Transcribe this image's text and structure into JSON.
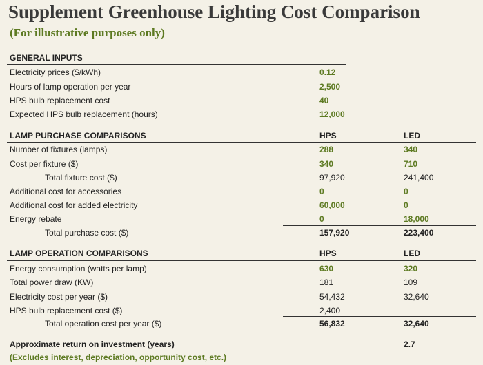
{
  "header": {
    "title": "Supplement Greenhouse Lighting Cost Comparison",
    "subtitle": "(For illustrative purposes only)"
  },
  "sections": [
    {
      "title": "GENERAL INPUTS",
      "rows": [
        {
          "label": "Electricity prices ($/kWh)",
          "values": [
            "0.12"
          ]
        },
        {
          "label": "Hours of lamp operation per year",
          "values": [
            "2,500"
          ]
        },
        {
          "label": "HPS bulb replacement cost",
          "values": [
            "40"
          ]
        },
        {
          "label": "Expected HPS bulb replacement (hours)",
          "values": [
            "12,000"
          ]
        }
      ]
    },
    {
      "title": "LAMP PURCHASE COMPARISONS",
      "columns": [
        "HPS",
        "LED"
      ],
      "rows": [
        {
          "label": "Number of fixtures (lamps)",
          "values": [
            "288",
            "340"
          ]
        },
        {
          "label": "Cost per fixture ($)",
          "values": [
            "340",
            "710"
          ]
        },
        {
          "label": "Total fixture cost ($)",
          "values": [
            "97,920",
            "241,400"
          ]
        },
        {
          "label": "Additional cost for accessories",
          "values": [
            "0",
            "0"
          ]
        },
        {
          "label": "Additional cost for added electricity",
          "values": [
            "60,000",
            "0"
          ]
        },
        {
          "label": "Energy rebate",
          "values": [
            "0",
            "18,000"
          ]
        }
      ],
      "total": {
        "label": "Total purchase cost ($)",
        "values": [
          "157,920",
          "223,400"
        ]
      }
    },
    {
      "title": "LAMP OPERATION COMPARISONS",
      "columns": [
        "HPS",
        "LED"
      ],
      "rows": [
        {
          "label": "Energy consumption (watts per lamp)",
          "values": [
            "630",
            "320"
          ]
        },
        {
          "label": "Total power draw (KW)",
          "values": [
            "181",
            "109"
          ]
        },
        {
          "label": "Electricity cost per year ($)",
          "values": [
            "54,432",
            "32,640"
          ]
        },
        {
          "label": "HPS bulb replacement cost ($)",
          "values": [
            "2,400"
          ]
        }
      ],
      "total": {
        "label": "Total operation cost per year ($)",
        "values": [
          "56,832",
          "32,640"
        ]
      }
    }
  ],
  "footer": {
    "label": "Approximate return on investment (years)",
    "value": "2.7",
    "note": "(Excludes interest, depreciation, opportunity cost, etc.)"
  }
}
